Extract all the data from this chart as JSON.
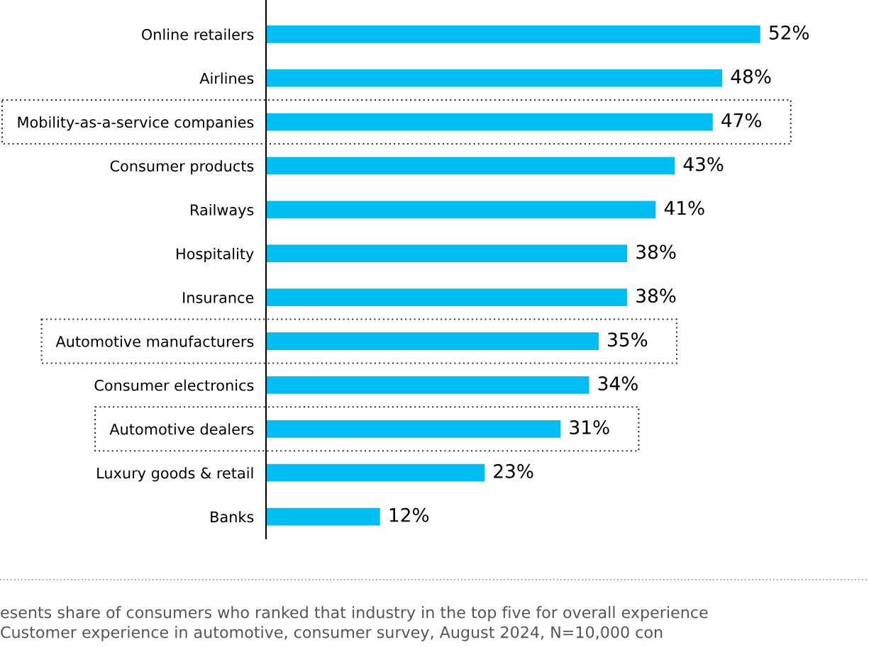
{
  "chart_data": {
    "type": "bar",
    "orientation": "horizontal",
    "categories": [
      "Online retailers",
      "Airlines",
      "Mobility-as-a-service companies",
      "Consumer products",
      "Railways",
      "Hospitality",
      "Insurance",
      "Automotive manufacturers",
      "Consumer electronics",
      "Automotive dealers",
      "Luxury goods & retail",
      "Banks"
    ],
    "values": [
      52,
      48,
      47,
      43,
      41,
      38,
      38,
      35,
      34,
      31,
      23,
      12
    ],
    "color": "#00bdf2",
    "value_labels": [
      "52%",
      "48%",
      "47%",
      "43%",
      "41%",
      "38%",
      "38%",
      "35%",
      "34%",
      "31%",
      "23%",
      "12%"
    ],
    "annotations": [
      "esents share of consumers who ranked that industry in the top five for overall experience",
      "Customer experience in automotive, consumer survey, August 2024, N=10,000 con"
    ],
    "grid": false
  }
}
